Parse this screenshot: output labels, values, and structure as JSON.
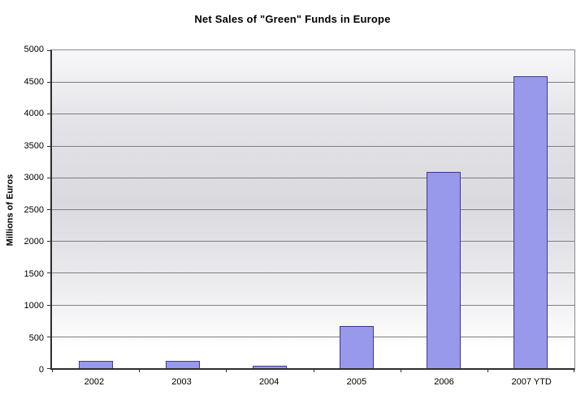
{
  "page": {
    "background": "#ffffff"
  },
  "chart_data": {
    "type": "bar",
    "title": "Net Sales of \"Green\" Funds in Europe",
    "xlabel": "",
    "ylabel": "Millions of Euros",
    "categories": [
      "2002",
      "2003",
      "2004",
      "2005",
      "2006",
      "2007 YTD"
    ],
    "values": [
      100,
      100,
      30,
      650,
      3080,
      4580
    ],
    "ylim": [
      0,
      5000
    ],
    "yticks": [
      0,
      500,
      1000,
      1500,
      2000,
      2500,
      3000,
      3500,
      4000,
      4500,
      5000
    ],
    "grid": "horizontal",
    "legend": "none",
    "colors": {
      "bar_fill": "#9999ec",
      "bar_border": "#39398f",
      "gridline": "#7f7f7f",
      "axis_line": "#2e2e2e",
      "plot_gradient_top": "#f7f7f9",
      "plot_gradient_mid": "#d9d9de",
      "plot_gradient_bottom": "#ffffff",
      "text": "#000000"
    }
  }
}
